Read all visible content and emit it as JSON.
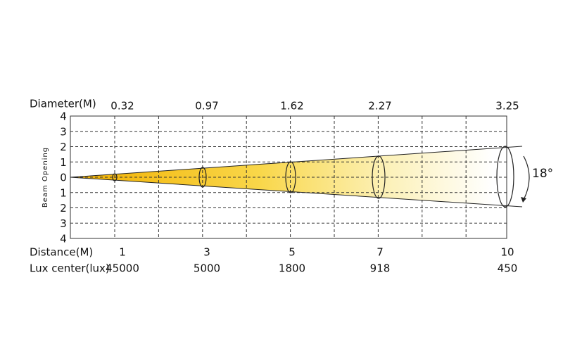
{
  "diameter_label": "Diameter(M)",
  "distance_label": "Distance(M)",
  "lux_label": "Lux center(lux)",
  "axis_title": "Beam Opening",
  "y_labels": [
    "4",
    "3",
    "2",
    "1",
    "0",
    "1",
    "2",
    "3",
    "4"
  ],
  "angle": "18°",
  "columns": [
    {
      "diameter": "0.32",
      "distance": "1",
      "lux": "45000"
    },
    {
      "diameter": "0.97",
      "distance": "3",
      "lux": "5000"
    },
    {
      "diameter": "1.62",
      "distance": "5",
      "lux": "1800"
    },
    {
      "diameter": "2.27",
      "distance": "7",
      "lux": "918"
    },
    {
      "diameter": "3.25",
      "distance": "10",
      "lux": "450"
    }
  ]
}
